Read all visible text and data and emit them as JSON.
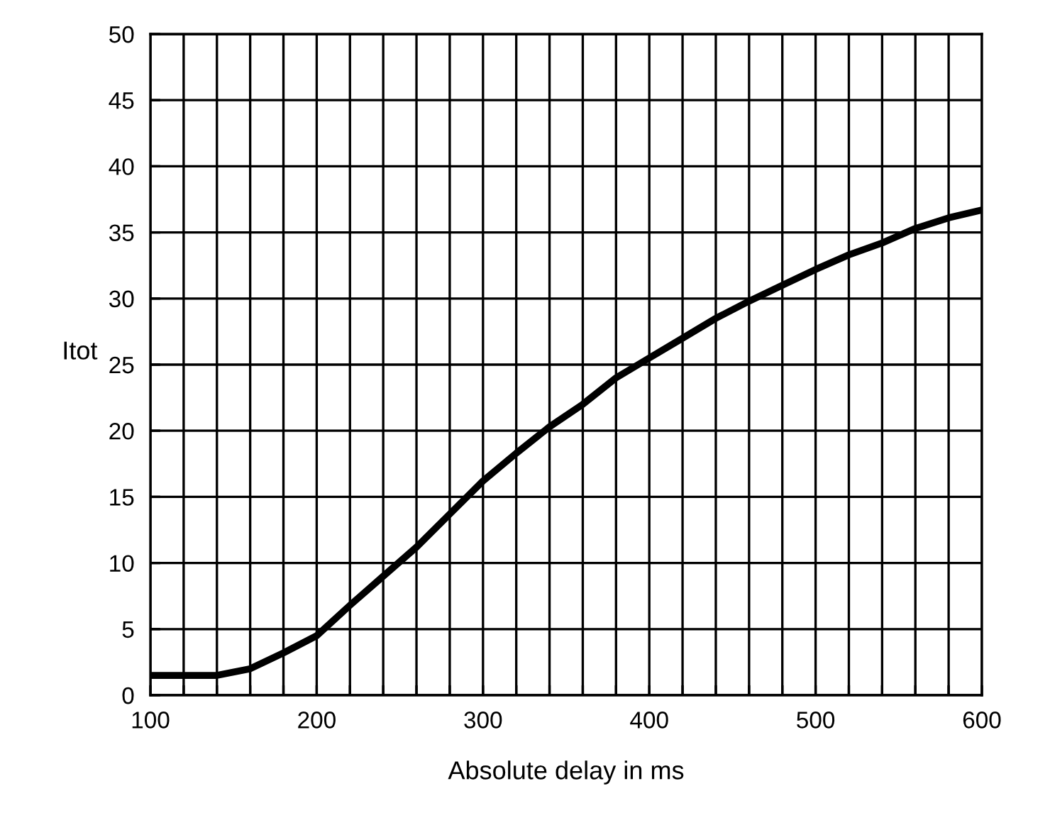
{
  "chart_data": {
    "type": "line",
    "xlabel": "Absolute delay in ms",
    "ylabel": "Itot",
    "x": [
      100,
      120,
      140,
      160,
      180,
      200,
      220,
      240,
      260,
      280,
      300,
      320,
      340,
      360,
      380,
      400,
      420,
      440,
      460,
      480,
      500,
      520,
      540,
      560,
      580,
      600
    ],
    "series": [
      {
        "color": "#000000",
        "values": [
          1.5,
          1.5,
          1.5,
          2,
          3.2,
          4.5,
          6.8,
          9,
          11.2,
          13.7,
          16.2,
          18.3,
          20.3,
          22,
          24,
          25.5,
          27,
          28.5,
          29.8,
          31,
          32.2,
          33.3,
          34.2,
          35.3,
          36.1,
          36.7
        ]
      }
    ],
    "xlim": [
      100,
      600
    ],
    "ylim": [
      0,
      50
    ],
    "xticks": [
      100,
      {
        "value": 120,
        "label": null
      },
      {
        "value": 140,
        "label": null
      },
      {
        "value": 160,
        "label": null
      },
      {
        "value": 180,
        "label": null
      },
      200,
      {
        "value": 220,
        "label": null
      },
      {
        "value": 240,
        "label": null
      },
      {
        "value": 260,
        "label": null
      },
      {
        "value": 280,
        "label": null
      },
      300,
      {
        "value": 320,
        "label": null
      },
      {
        "value": 340,
        "label": null
      },
      {
        "value": 360,
        "label": null
      },
      {
        "value": 380,
        "label": null
      },
      400,
      {
        "value": 420,
        "label": null
      },
      {
        "value": 440,
        "label": null
      },
      {
        "value": 460,
        "label": null
      },
      {
        "value": 480,
        "label": null
      },
      500,
      {
        "value": 520,
        "label": null
      },
      {
        "value": 540,
        "label": null
      },
      {
        "value": 560,
        "label": null
      },
      {
        "value": 580,
        "label": null
      },
      600
    ],
    "yticks": [
      0,
      5,
      10,
      15,
      20,
      25,
      30,
      35,
      40,
      45,
      50
    ],
    "grid": true,
    "marker": "none",
    "line_style": "solid"
  }
}
